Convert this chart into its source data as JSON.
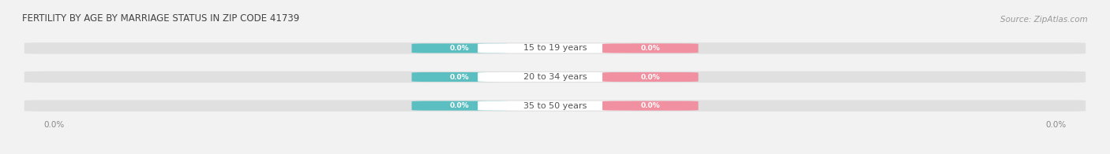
{
  "title": "FERTILITY BY AGE BY MARRIAGE STATUS IN ZIP CODE 41739",
  "source": "Source: ZipAtlas.com",
  "categories": [
    "15 to 19 years",
    "20 to 34 years",
    "35 to 50 years"
  ],
  "married_values": [
    "0.0%",
    "0.0%",
    "0.0%"
  ],
  "unmarried_values": [
    "0.0%",
    "0.0%",
    "0.0%"
  ],
  "married_color": "#5bbfc2",
  "unmarried_color": "#f090a0",
  "bg_color": "#f2f2f2",
  "bar_bg_light": "#e8e8e8",
  "bar_bg_dark": "#d8d8d8",
  "center_color": "#ffffff",
  "left_axis_label": "0.0%",
  "right_axis_label": "0.0%",
  "figsize": [
    14.06,
    1.96
  ],
  "dpi": 100,
  "title_fontsize": 8.5,
  "source_fontsize": 7.5,
  "category_fontsize": 8,
  "pill_fontsize": 6.5,
  "legend_fontsize": 8,
  "axis_label_fontsize": 7.5
}
